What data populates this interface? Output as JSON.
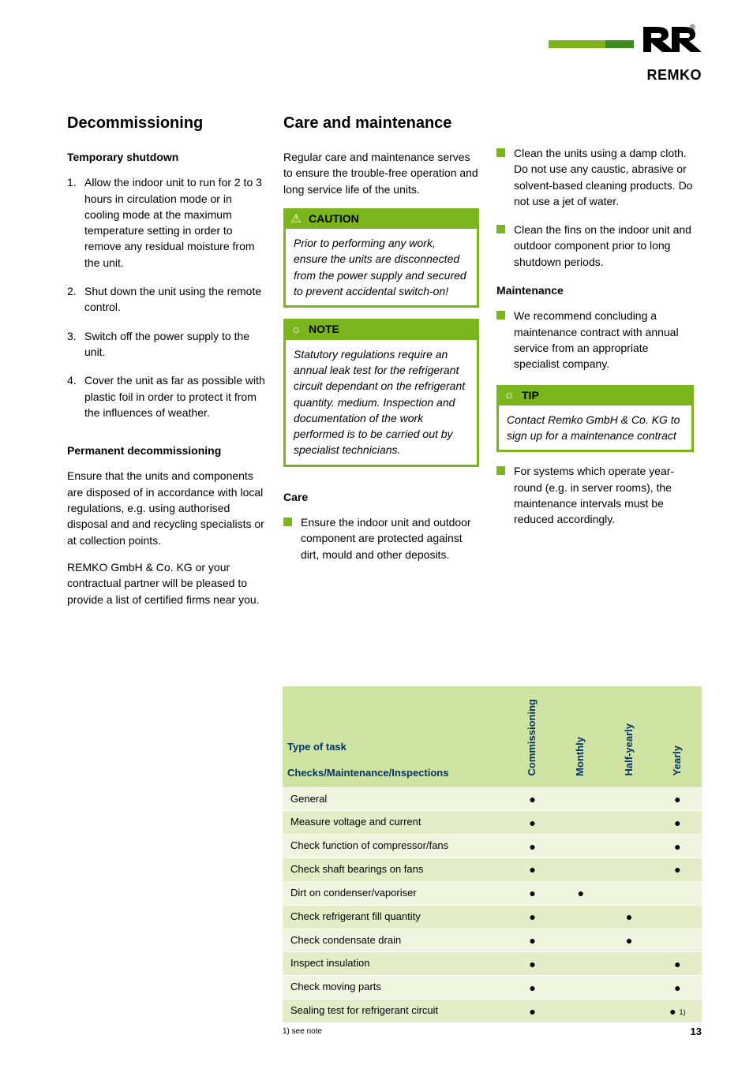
{
  "logo": {
    "brand": "REMKO"
  },
  "page_number": "13",
  "col1": {
    "heading": "Decommissioning",
    "sub1": "Temporary shutdown",
    "steps": [
      "Allow the indoor unit to run for 2 to 3 hours in circulation mode or in cooling mode at the maximum temperature setting in order to remove any residual moisture from the unit.",
      "Shut down the unit using the remote control.",
      "Switch off the power supply to the unit.",
      "Cover the unit as far as possible with plastic foil in order to protect it from the influences of weather."
    ],
    "sub2": "Permanent decommissioning",
    "para1": "Ensure that the units and components are disposed of in accordance with local regulations, e.g. using authorised disposal and and recycling specialists or at collection points.",
    "para2": "REMKO GmbH & Co. KG or your contractual partner will be pleased to provide a list of certified firms near you."
  },
  "col2": {
    "heading": "Care and maintenance",
    "intro": "Regular care and maintenance serves to ensure the trouble-free operation and long service life of the units.",
    "caution": {
      "label": "CAUTION",
      "body": "Prior to performing any work, ensure the units are disconnected from the power supply and secured to prevent accidental switch-on!"
    },
    "note": {
      "label": "NOTE",
      "body": "Statutory regulations require an annual leak test for the refrigerant circuit dependant on the refrigerant quantity. medium. Inspection and documentation of the work performed is to be carried out by specialist technicians."
    },
    "care_head": "Care",
    "care_item": "Ensure the indoor unit and outdoor component are protected against dirt, mould and other deposits."
  },
  "col3": {
    "b1": "Clean the units using a damp cloth. Do not use any caustic, abrasive or solvent-based cleaning products. Do not use a jet of water.",
    "b2": "Clean the fins on the indoor unit and outdoor component prior to long shutdown periods.",
    "maint_head": "Maintenance",
    "b3": "We recommend concluding a maintenance contract with annual service from an appropriate specialist company.",
    "tip": {
      "label": "TIP",
      "body": "Contact Remko GmbH & Co. KG to sign up for a maintenance contract"
    },
    "b4": "For systems which operate year-round (e.g. in server rooms), the maintenance intervals must be reduced accordingly."
  },
  "table": {
    "head_task_l1": "Type of task",
    "head_task_l2": "Checks/Maintenance/Inspections",
    "cols": [
      "Commissioning",
      "Monthly",
      "Half-yearly",
      "Yearly"
    ],
    "rows": [
      {
        "task": "General",
        "c": true,
        "m": false,
        "h": false,
        "y": true,
        "sup": ""
      },
      {
        "task": "Measure voltage and current",
        "c": true,
        "m": false,
        "h": false,
        "y": true,
        "sup": ""
      },
      {
        "task": "Check function of compressor/fans",
        "c": true,
        "m": false,
        "h": false,
        "y": true,
        "sup": ""
      },
      {
        "task": "Check shaft bearings on fans",
        "c": true,
        "m": false,
        "h": false,
        "y": true,
        "sup": ""
      },
      {
        "task": "Dirt on condenser/vaporiser",
        "c": true,
        "m": true,
        "h": false,
        "y": false,
        "sup": ""
      },
      {
        "task": "Check refrigerant fill quantity",
        "c": true,
        "m": false,
        "h": true,
        "y": false,
        "sup": ""
      },
      {
        "task": "Check condensate drain",
        "c": true,
        "m": false,
        "h": true,
        "y": false,
        "sup": ""
      },
      {
        "task": "Inspect insulation",
        "c": true,
        "m": false,
        "h": false,
        "y": true,
        "sup": ""
      },
      {
        "task": "Check moving parts",
        "c": true,
        "m": false,
        "h": false,
        "y": true,
        "sup": ""
      },
      {
        "task": "Sealing test for refrigerant circuit",
        "c": true,
        "m": false,
        "h": false,
        "y": true,
        "sup": "1)"
      }
    ],
    "footnote": "1) see note"
  }
}
